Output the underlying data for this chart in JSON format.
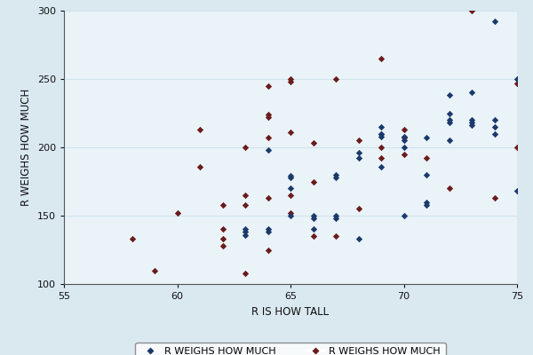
{
  "title": "",
  "xlabel": "R IS HOW TALL",
  "ylabel": "R WEIGHS HOW MUCH",
  "xlim": [
    55,
    75
  ],
  "ylim": [
    100,
    300
  ],
  "xticks": [
    55,
    60,
    65,
    70,
    75
  ],
  "yticks": [
    100,
    150,
    200,
    250,
    300
  ],
  "background_color": "#dae8f0",
  "plot_bg_color": "#eaf3f8",
  "grid_color": "#d0e4ed",
  "legend_label1": "R WEIGHS HOW MUCH",
  "legend_label2": "R WEIGHS HOW MUCH",
  "color1": "#1b3a6b",
  "color2": "#6b1b1b",
  "series1_x": [
    63,
    63,
    63,
    64,
    64,
    64,
    65,
    65,
    65,
    65,
    66,
    66,
    66,
    67,
    67,
    67,
    67,
    68,
    68,
    68,
    69,
    69,
    69,
    69,
    69,
    70,
    70,
    70,
    70,
    71,
    71,
    71,
    71,
    72,
    72,
    72,
    72,
    72,
    73,
    73,
    73,
    73,
    74,
    74,
    74,
    74,
    75,
    75
  ],
  "series1_y": [
    140,
    138,
    136,
    140,
    138,
    198,
    179,
    178,
    170,
    150,
    150,
    148,
    140,
    180,
    178,
    150,
    148,
    196,
    192,
    133,
    215,
    210,
    210,
    208,
    186,
    205,
    208,
    150,
    200,
    158,
    160,
    180,
    207,
    205,
    218,
    220,
    225,
    238,
    216,
    218,
    220,
    240,
    210,
    215,
    220,
    292,
    250,
    168
  ],
  "series2_x": [
    58,
    59,
    60,
    61,
    61,
    62,
    62,
    62,
    62,
    63,
    63,
    63,
    63,
    64,
    64,
    64,
    64,
    64,
    64,
    65,
    65,
    65,
    65,
    65,
    66,
    66,
    66,
    67,
    67,
    68,
    68,
    69,
    69,
    69,
    70,
    70,
    70,
    71,
    72,
    73,
    74,
    75,
    75
  ],
  "series2_y": [
    133,
    110,
    152,
    213,
    186,
    158,
    140,
    133,
    128,
    200,
    165,
    158,
    108,
    245,
    224,
    222,
    207,
    163,
    125,
    250,
    248,
    211,
    165,
    152,
    203,
    175,
    135,
    250,
    135,
    205,
    155,
    265,
    200,
    192,
    213,
    207,
    195,
    192,
    170,
    300,
    163,
    247,
    200
  ]
}
